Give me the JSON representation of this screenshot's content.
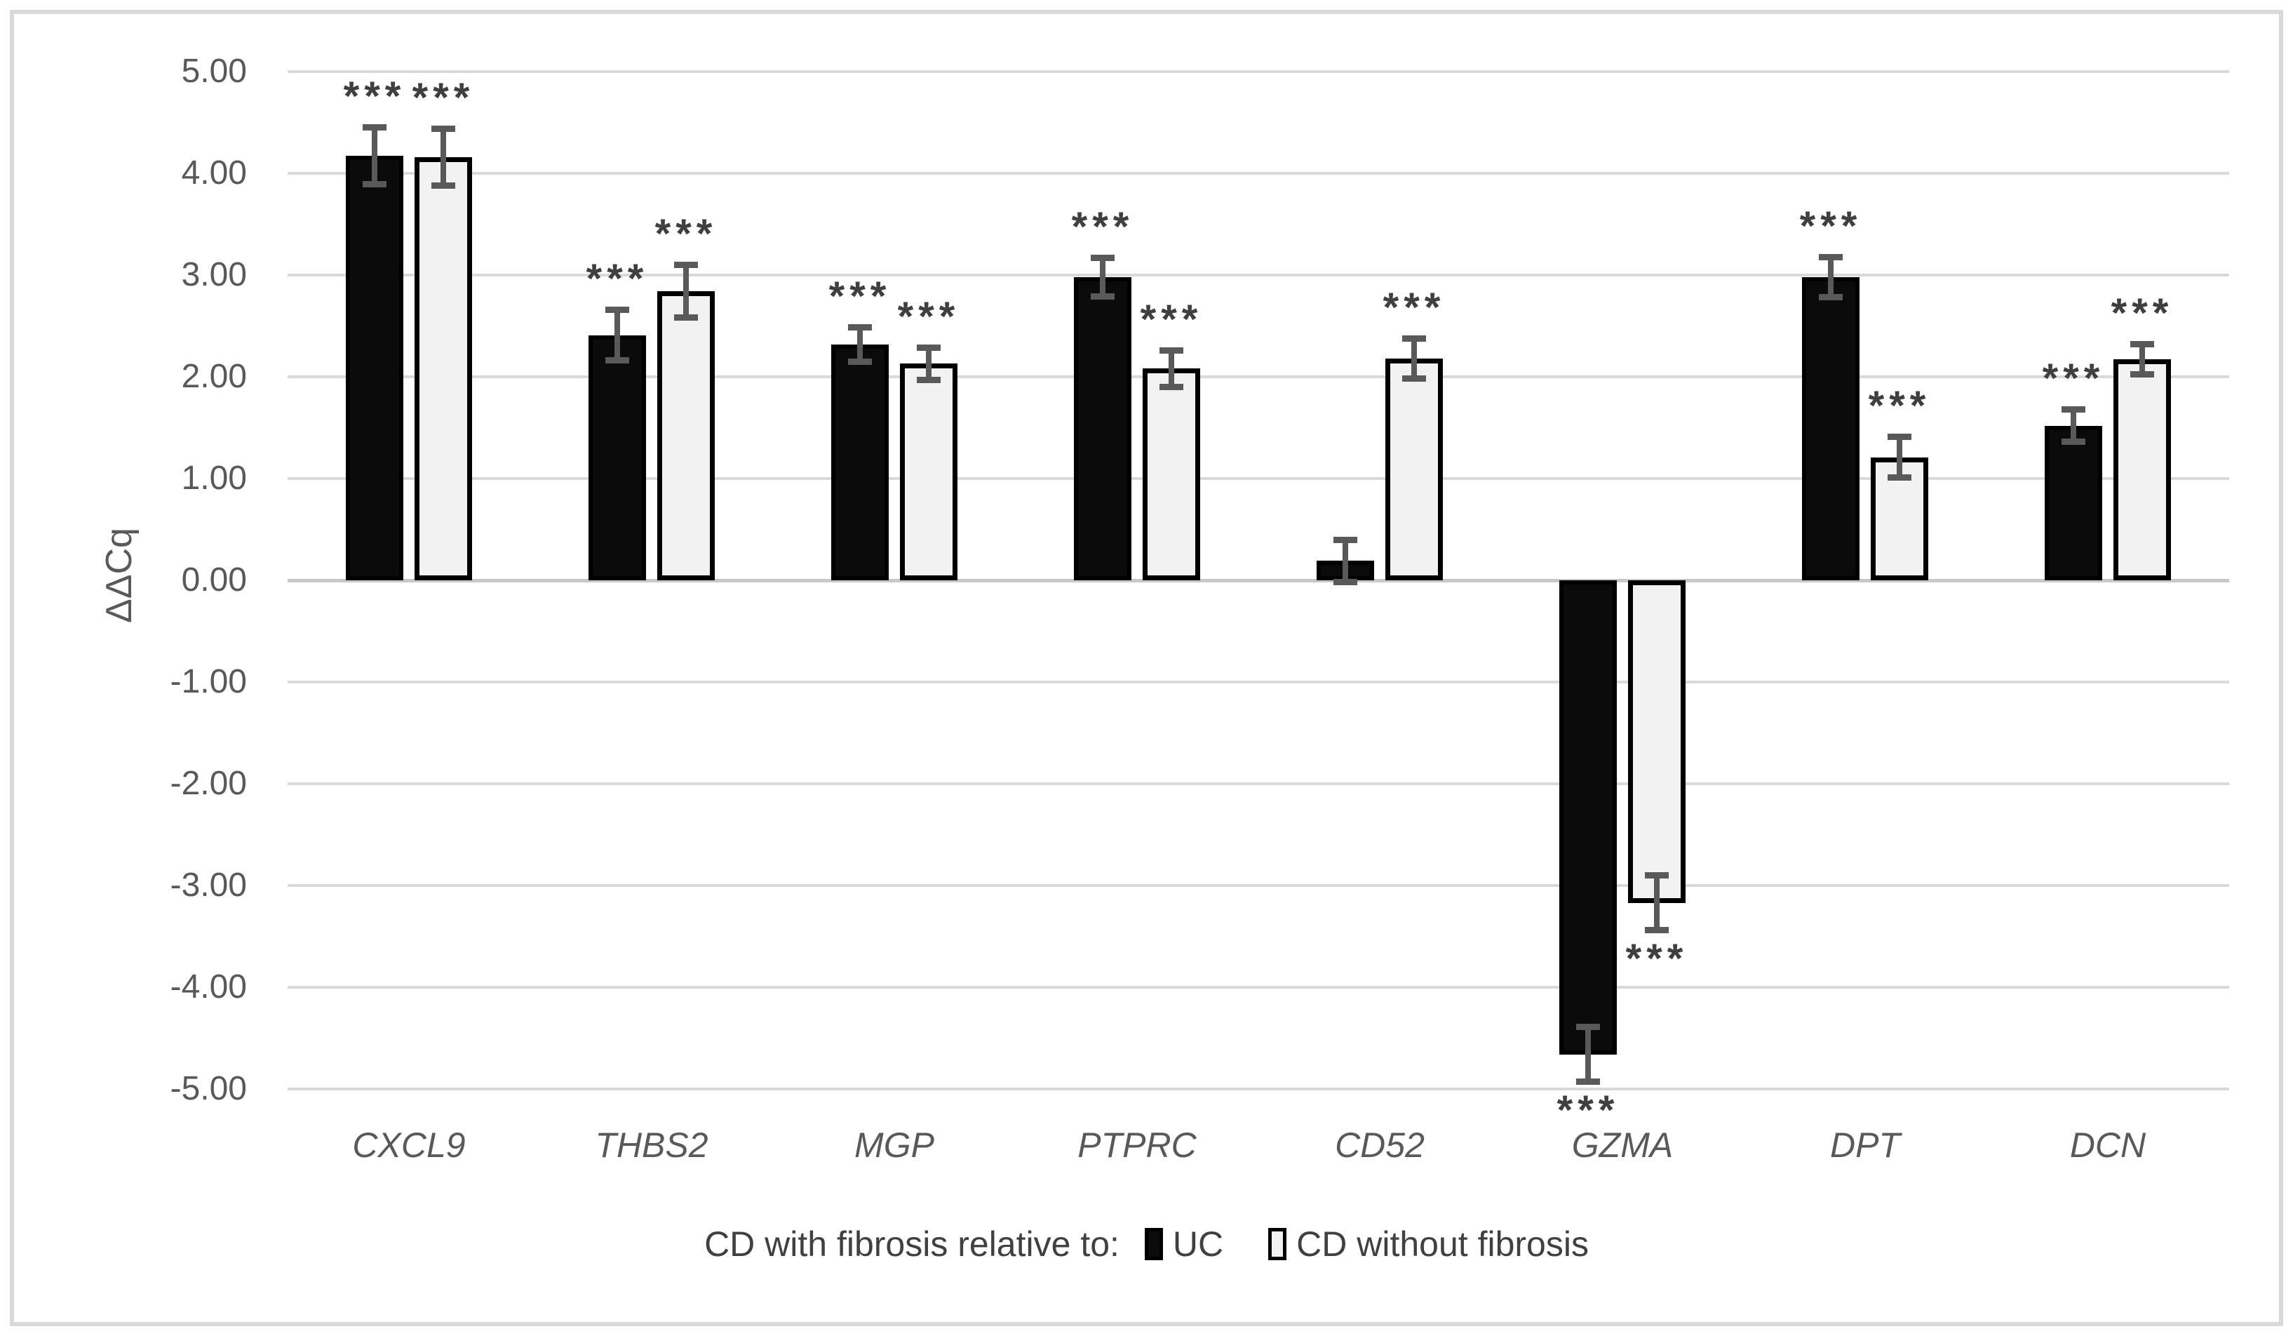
{
  "figure": {
    "background": "#ffffff",
    "border_color": "#d9d9d9"
  },
  "chart_data": {
    "type": "bar",
    "title": "",
    "xlabel": "",
    "ylabel": "ΔΔCq",
    "ylim": [
      -5,
      5
    ],
    "grid": true,
    "legend_position": "bottom",
    "legend_prefix": "CD with fibrosis relative to:",
    "yticks": [
      {
        "v": 5,
        "label": "5.00"
      },
      {
        "v": 4,
        "label": "4.00"
      },
      {
        "v": 3,
        "label": "3.00"
      },
      {
        "v": 2,
        "label": "2.00"
      },
      {
        "v": 1,
        "label": "1.00"
      },
      {
        "v": 0,
        "label": "0.00"
      },
      {
        "v": -1,
        "label": "-1.00"
      },
      {
        "v": -2,
        "label": "-2.00"
      },
      {
        "v": -3,
        "label": "-3.00"
      },
      {
        "v": -4,
        "label": "-4.00"
      },
      {
        "v": -5,
        "label": "-5.00"
      }
    ],
    "categories": [
      "CXCL9",
      "THBS2",
      "MGP",
      "PTPRC",
      "CD52",
      "GZMA",
      "DPT",
      "DCN"
    ],
    "series": [
      {
        "name": "UC",
        "fill": "#0b0b0b",
        "border": "#000000",
        "values": [
          4.17,
          2.41,
          2.32,
          2.98,
          0.19,
          -4.66,
          2.98,
          1.52
        ],
        "errors": [
          0.31,
          0.28,
          0.2,
          0.22,
          0.24,
          0.3,
          0.23,
          0.19
        ],
        "significance": [
          "***",
          "***",
          "***",
          "***",
          "",
          "***",
          "***",
          "***"
        ]
      },
      {
        "name": "CD without fibrosis",
        "fill": "#f2f2f2",
        "border": "#000000",
        "values": [
          4.16,
          2.84,
          2.13,
          2.08,
          2.18,
          -3.17,
          1.21,
          2.17
        ],
        "errors": [
          0.31,
          0.29,
          0.19,
          0.21,
          0.23,
          0.3,
          0.23,
          0.18
        ],
        "significance": [
          "***",
          "***",
          "***",
          "***",
          "***",
          "***",
          "***",
          "***"
        ]
      }
    ],
    "colors": {
      "gridline": "#d9d9d9",
      "zero_line": "#c8c8c8",
      "error_bar": "#595959",
      "significance": "#3f3f3f",
      "tick_text": "#595959",
      "category_text": "#595959",
      "legend_text": "#404040"
    }
  }
}
